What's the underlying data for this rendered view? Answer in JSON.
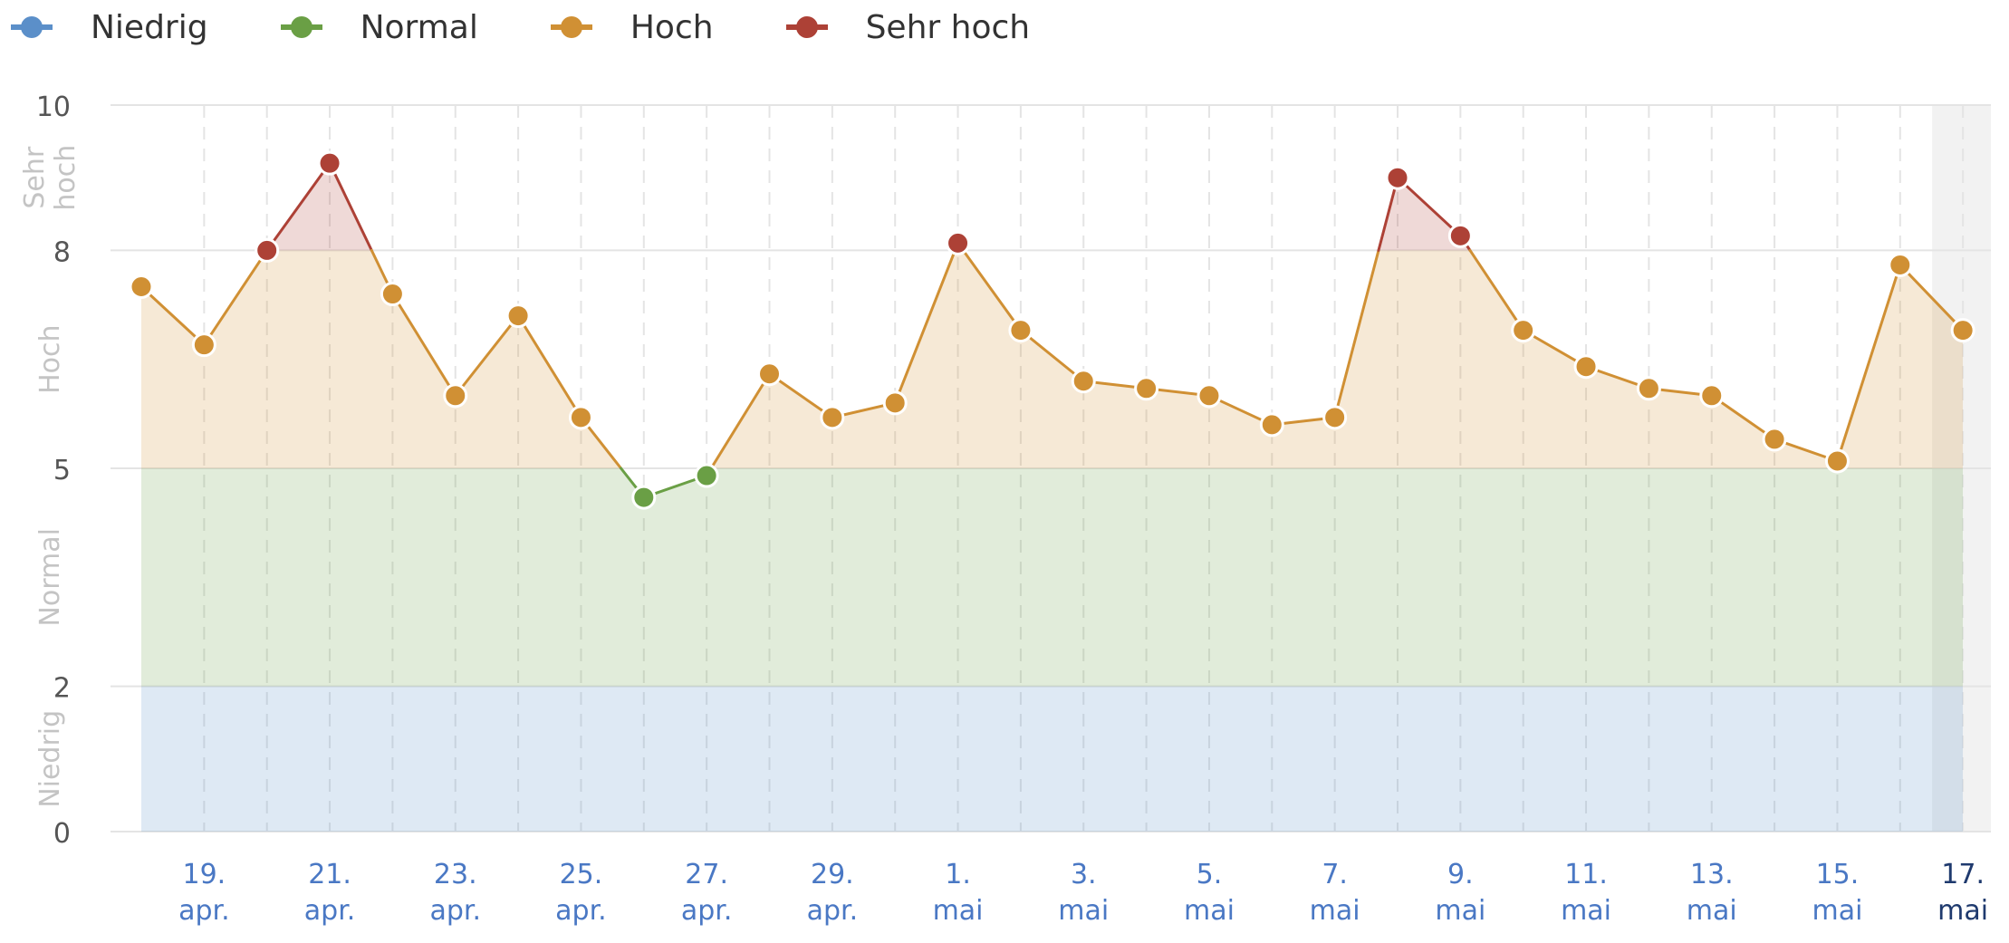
{
  "legend": [
    {
      "label": "Niedrig",
      "color": "#5b8fc9"
    },
    {
      "label": "Normal",
      "color": "#6a9f45"
    },
    {
      "label": "Hoch",
      "color": "#d09034"
    },
    {
      "label": "Sehr hoch",
      "color": "#ad4136"
    }
  ],
  "chart_data": {
    "type": "line",
    "x": [
      "18. apr.",
      "19. apr.",
      "20. apr.",
      "21. apr.",
      "22. apr.",
      "23. apr.",
      "24. apr.",
      "25. apr.",
      "26. apr.",
      "27. apr.",
      "28. apr.",
      "29. apr.",
      "30. apr.",
      "1. mai",
      "2. mai",
      "3. mai",
      "4. mai",
      "5. mai",
      "6. mai",
      "7. mai",
      "8. mai",
      "9. mai",
      "10. mai",
      "11. mai",
      "12. mai",
      "13. mai",
      "14. mai",
      "15. mai",
      "16. mai",
      "17. mai"
    ],
    "values": [
      7.5,
      6.7,
      8.0,
      9.2,
      7.4,
      6.0,
      7.1,
      5.7,
      4.6,
      4.9,
      6.3,
      5.7,
      5.9,
      8.1,
      6.9,
      6.2,
      6.1,
      6.0,
      5.6,
      5.7,
      9.0,
      8.2,
      6.9,
      6.4,
      6.1,
      6.0,
      5.4,
      5.1,
      7.8,
      6.9
    ],
    "ylim": [
      0,
      10
    ],
    "y_ticks": [
      0,
      2,
      5,
      8,
      10
    ],
    "x_tick_labels": [
      {
        "index": 1,
        "day": "19.",
        "month": "apr."
      },
      {
        "index": 3,
        "day": "21.",
        "month": "apr."
      },
      {
        "index": 5,
        "day": "23.",
        "month": "apr."
      },
      {
        "index": 7,
        "day": "25.",
        "month": "apr."
      },
      {
        "index": 9,
        "day": "27.",
        "month": "apr."
      },
      {
        "index": 11,
        "day": "29.",
        "month": "apr."
      },
      {
        "index": 13,
        "day": "1.",
        "month": "mai"
      },
      {
        "index": 15,
        "day": "3.",
        "month": "mai"
      },
      {
        "index": 17,
        "day": "5.",
        "month": "mai"
      },
      {
        "index": 19,
        "day": "7.",
        "month": "mai"
      },
      {
        "index": 21,
        "day": "9.",
        "month": "mai"
      },
      {
        "index": 23,
        "day": "11.",
        "month": "mai"
      },
      {
        "index": 25,
        "day": "13.",
        "month": "mai"
      },
      {
        "index": 27,
        "day": "15.",
        "month": "mai"
      },
      {
        "index": 29,
        "day": "17.",
        "month": "mai"
      }
    ],
    "bands": [
      {
        "label": "Niedrig",
        "from": 0,
        "to": 2,
        "color": "#5b8fc9"
      },
      {
        "label": "Normal",
        "from": 2,
        "to": 5,
        "color": "#6a9f45"
      },
      {
        "label": "Hoch",
        "from": 5,
        "to": 8,
        "color": "#d09034"
      },
      {
        "label": "Sehr hoch",
        "from": 8,
        "to": 10,
        "color": "#ad4136"
      }
    ],
    "band_labels": {
      "Niedrig": [
        "Niedrig"
      ],
      "Normal": [
        "Normal"
      ],
      "Hoch": [
        "Hoch"
      ],
      "Sehr hoch": [
        "Sehr",
        "hoch"
      ]
    },
    "grid": true,
    "legend_position": "top-left",
    "highlighted_x": "17. mai",
    "colors": {
      "grid": "#e4e4e4",
      "tick_text": "#555555",
      "x_tick_text": "#4a78c4",
      "highlight_text": "#1f3a6e",
      "band_label_text": "#c4c4c4"
    }
  }
}
